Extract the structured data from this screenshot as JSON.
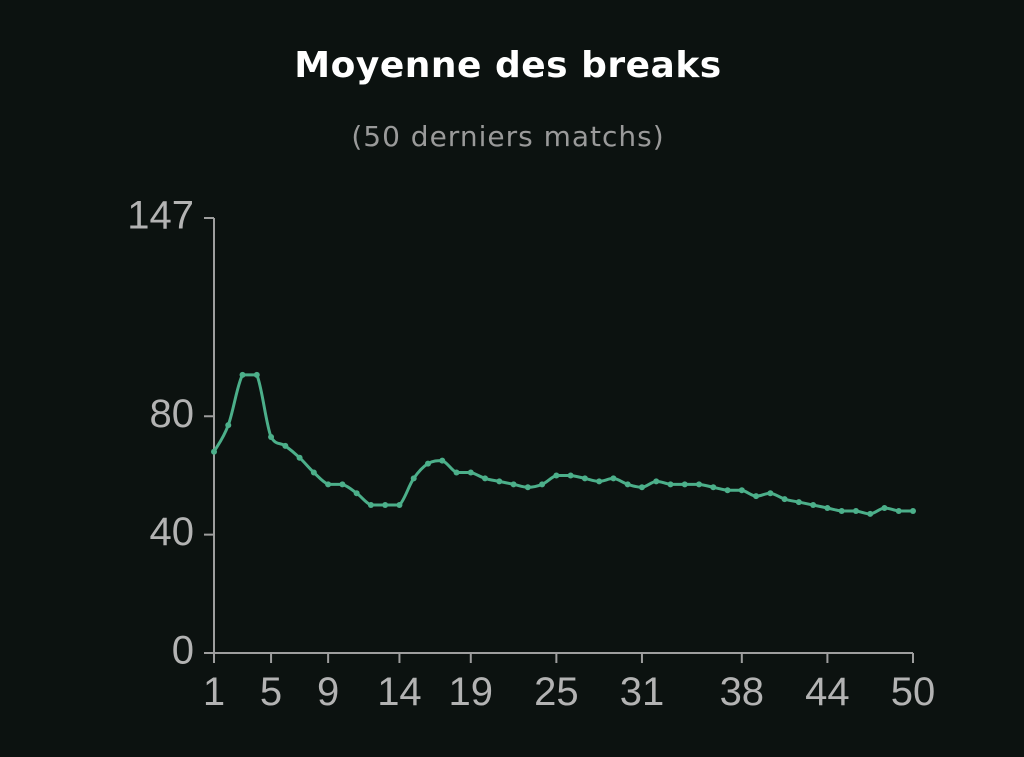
{
  "chart_data": {
    "type": "line",
    "title": "Moyenne des breaks",
    "subtitle": "(50 derniers matchs)",
    "xlabel": "",
    "ylabel": "",
    "x_ticks": [
      1,
      5,
      9,
      14,
      19,
      25,
      31,
      38,
      44,
      50
    ],
    "y_ticks": [
      0,
      40,
      80,
      147
    ],
    "xlim": [
      1,
      50
    ],
    "ylim": [
      0,
      147
    ],
    "grid": false,
    "colors": {
      "line": "#4caf8a",
      "axis": "#9e9e9e",
      "background": "#0c1210"
    },
    "x": [
      1,
      2,
      3,
      4,
      5,
      6,
      7,
      8,
      9,
      10,
      11,
      12,
      13,
      14,
      15,
      16,
      17,
      18,
      19,
      20,
      21,
      22,
      23,
      24,
      25,
      26,
      27,
      28,
      29,
      30,
      31,
      32,
      33,
      34,
      35,
      36,
      37,
      38,
      39,
      40,
      41,
      42,
      43,
      44,
      45,
      46,
      47,
      48,
      49,
      50
    ],
    "values": [
      68,
      77,
      94,
      94,
      73,
      70,
      66,
      61,
      57,
      57,
      54,
      50,
      50,
      50,
      59,
      64,
      65,
      61,
      61,
      59,
      58,
      57,
      56,
      57,
      60,
      60,
      59,
      58,
      59,
      57,
      56,
      58,
      57,
      57,
      57,
      56,
      55,
      55,
      53,
      54,
      52,
      51,
      50,
      49,
      48,
      48,
      47,
      49,
      48,
      48
    ]
  }
}
